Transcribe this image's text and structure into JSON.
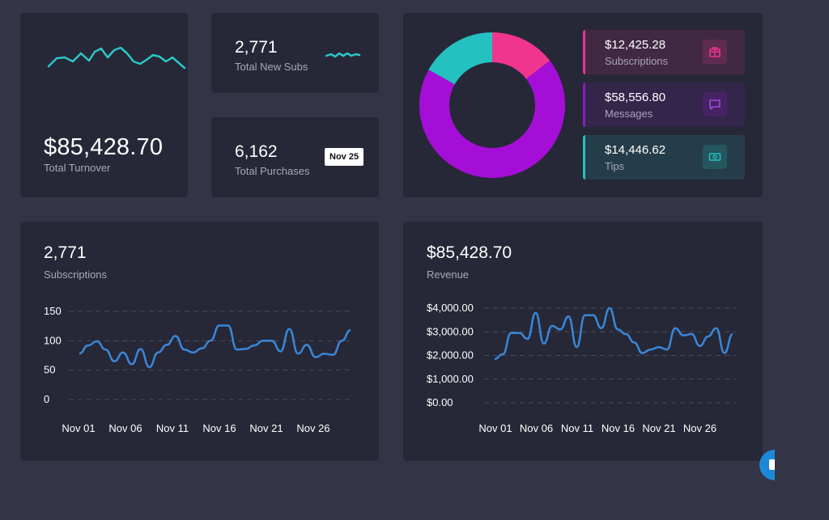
{
  "turnover": {
    "value": "$85,428.70",
    "label": "Total Turnover"
  },
  "new_subs": {
    "value": "2,771",
    "label": "Total New Subs"
  },
  "purchases": {
    "value": "6,162",
    "label": "Total Purchases",
    "date_badge": "Nov 25"
  },
  "breakdown": {
    "items": [
      {
        "value": "$12,425.28",
        "label": "Subscriptions",
        "icon": "gift-box-icon",
        "color": "#e9358f"
      },
      {
        "value": "$58,556.80",
        "label": "Messages",
        "icon": "message-icon",
        "color": "#8b1dc4"
      },
      {
        "value": "$14,446.62",
        "label": "Tips",
        "icon": "cash-icon",
        "color": "#25c1c1"
      }
    ]
  },
  "subs_panel": {
    "value": "2,771",
    "label": "Subscriptions"
  },
  "revenue_panel": {
    "value": "$85,428.70",
    "label": "Revenue"
  },
  "chart_data": [
    {
      "type": "pie",
      "categories": [
        "Subscriptions",
        "Messages",
        "Tips"
      ],
      "values": [
        12425.28,
        58556.8,
        14446.62
      ],
      "colors": [
        "#f0358f",
        "#a50ed6",
        "#25c1c1"
      ]
    },
    {
      "type": "line",
      "title": "Subscriptions",
      "x_ticks": [
        "Nov 01",
        "Nov 06",
        "Nov 11",
        "Nov 16",
        "Nov 21",
        "Nov 26"
      ],
      "y_ticks": [
        "150",
        "100",
        "50",
        "0"
      ],
      "ylim": [
        0,
        150
      ],
      "grid": true,
      "color": "#3a86d8",
      "values": [
        78,
        92,
        99,
        85,
        65,
        80,
        60,
        86,
        55,
        80,
        93,
        108,
        85,
        80,
        87,
        100,
        126,
        126,
        85,
        86,
        92,
        100,
        100,
        82,
        120,
        78,
        93,
        72,
        78,
        76,
        100,
        118
      ]
    },
    {
      "type": "line",
      "title": "Revenue",
      "x_ticks": [
        "Nov 01",
        "Nov 06",
        "Nov 11",
        "Nov 16",
        "Nov 21",
        "Nov 26"
      ],
      "y_ticks": [
        "$4,000.00",
        "$3,000.00",
        "$2,000.00",
        "$1,000.00",
        "$0.00"
      ],
      "ylim": [
        0,
        4000
      ],
      "grid": true,
      "color": "#3a86d8",
      "values": [
        1850,
        2050,
        2950,
        2950,
        2700,
        3800,
        2500,
        3250,
        3100,
        3650,
        2350,
        3700,
        3700,
        3150,
        4000,
        3100,
        2900,
        2550,
        2100,
        2250,
        2350,
        2250,
        3150,
        2850,
        2900,
        2400,
        2800,
        3150,
        2100,
        2900
      ]
    }
  ]
}
